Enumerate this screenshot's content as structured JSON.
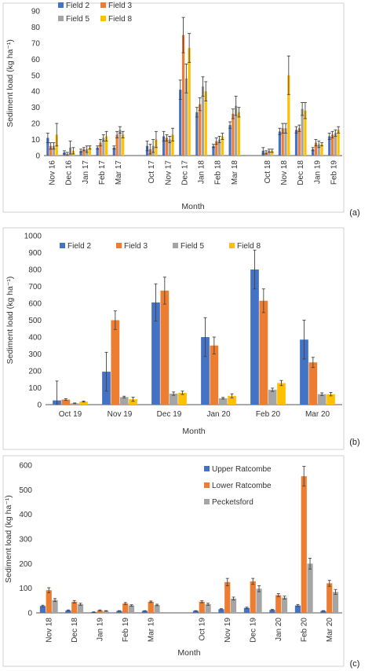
{
  "colors": {
    "blue": "#4472c4",
    "orange": "#ed7d31",
    "gray": "#a5a5a5",
    "yellow": "#ffc000"
  },
  "chart_data": [
    {
      "type": "bar",
      "panel_label": "(a)",
      "xlabel": "Month",
      "ylabel": "Sediment load (kg ha⁻¹)",
      "ylim": [
        0,
        90
      ],
      "yticks": [
        0,
        10,
        20,
        30,
        40,
        50,
        60,
        70,
        80,
        90
      ],
      "legend_position": "top-left",
      "categories": [
        "Nov 16",
        "Dec 16",
        "Jan 17",
        "Feb 17",
        "Mar 17",
        "",
        "Oct 17",
        "Nov 17",
        "Dec 17",
        "Jan 18",
        "Feb 18",
        "Mar 18",
        "",
        "Oct 18",
        "Nov 18",
        "Dec 18",
        "Jan 19",
        "Feb 19"
      ],
      "series": [
        {
          "name": "Field 2",
          "color": "blue",
          "values": [
            11,
            2,
            3,
            5,
            5,
            null,
            6,
            12,
            41,
            27,
            6,
            19,
            null,
            3,
            15,
            16,
            4,
            12
          ],
          "errors": [
            3,
            1,
            1,
            1,
            1,
            null,
            3,
            3,
            6,
            3,
            1,
            2,
            null,
            2,
            2,
            2,
            1,
            2
          ]
        },
        {
          "name": "Field 3",
          "color": "orange",
          "values": [
            6,
            1,
            4,
            8,
            13,
            null,
            4,
            11,
            75,
            32,
            9,
            26,
            null,
            2,
            17,
            17,
            8,
            13
          ],
          "errors": [
            2,
            1,
            1,
            2,
            2,
            null,
            3,
            2,
            11,
            4,
            2,
            3,
            null,
            1,
            3,
            2,
            2,
            2
          ]
        },
        {
          "name": "Field 5",
          "color": "gray",
          "values": [
            6,
            5,
            4,
            11,
            16,
            null,
            6,
            10,
            48,
            43,
            10,
            31,
            null,
            3,
            17,
            29,
            7,
            14
          ],
          "errors": [
            2,
            4,
            2,
            2,
            2,
            null,
            4,
            2,
            9,
            6,
            2,
            6,
            null,
            1,
            3,
            4,
            2,
            2
          ]
        },
        {
          "name": "Field 8",
          "color": "yellow",
          "values": [
            13,
            3,
            5,
            12,
            13,
            null,
            10,
            13,
            67,
            40,
            12,
            27,
            null,
            3,
            50,
            28,
            7,
            16
          ],
          "errors": [
            7,
            2,
            1,
            3,
            2,
            null,
            5,
            4,
            9,
            6,
            2,
            3,
            null,
            1,
            12,
            5,
            1,
            2
          ]
        }
      ]
    },
    {
      "type": "bar",
      "panel_label": "(b)",
      "xlabel": "Month",
      "ylabel": "Sediment load (kg ha⁻¹)",
      "ylim": [
        0,
        1000
      ],
      "yticks": [
        0,
        100,
        200,
        300,
        400,
        500,
        600,
        700,
        800,
        900,
        1000
      ],
      "legend_position": "top",
      "categories": [
        "Oct 19",
        "Nov 19",
        "Dec 19",
        "Jan 20",
        "Feb 20",
        "Mar 20"
      ],
      "series": [
        {
          "name": "Field 2",
          "color": "blue",
          "values": [
            25,
            195,
            605,
            400,
            800,
            385
          ],
          "errors": [
            115,
            115,
            110,
            115,
            115,
            115
          ]
        },
        {
          "name": "Field 3",
          "color": "orange",
          "values": [
            30,
            500,
            675,
            350,
            615,
            250
          ],
          "errors": [
            5,
            55,
            80,
            50,
            70,
            30
          ]
        },
        {
          "name": "Field 5",
          "color": "gray",
          "values": [
            8,
            45,
            65,
            38,
            88,
            62
          ],
          "errors": [
            2,
            5,
            10,
            5,
            10,
            8
          ]
        },
        {
          "name": "Field 8",
          "color": "yellow",
          "values": [
            18,
            32,
            70,
            52,
            128,
            62
          ],
          "errors": [
            3,
            12,
            10,
            12,
            15,
            10
          ]
        }
      ]
    },
    {
      "type": "bar",
      "panel_label": "(c)",
      "xlabel": "Month",
      "ylabel": "Sediment load (kg ha⁻¹)",
      "ylim": [
        0,
        600
      ],
      "yticks": [
        0,
        100,
        200,
        300,
        400,
        500,
        600
      ],
      "legend_position": "top-right",
      "categories": [
        "Nov 18",
        "Dec 18",
        "Jan 19",
        "Feb 19",
        "Mar 19",
        "",
        "Oct 19",
        "Nov 19",
        "Dec 19",
        "Jan 20",
        "Feb 20",
        "Mar 20"
      ],
      "series": [
        {
          "name": "Upper Ratcombe",
          "color": "blue",
          "values": [
            28,
            10,
            3,
            8,
            8,
            null,
            8,
            15,
            20,
            12,
            30,
            8
          ],
          "errors": [
            3,
            2,
            1,
            1,
            1,
            null,
            1,
            2,
            3,
            2,
            4,
            1
          ]
        },
        {
          "name": "Lower Ratcombe",
          "color": "orange",
          "values": [
            92,
            45,
            10,
            38,
            45,
            null,
            45,
            125,
            128,
            72,
            555,
            120
          ],
          "errors": [
            10,
            5,
            2,
            4,
            3,
            null,
            4,
            15,
            12,
            6,
            40,
            12
          ]
        },
        {
          "name": "Pecketsford",
          "color": "gray",
          "values": [
            52,
            35,
            8,
            30,
            32,
            null,
            35,
            58,
            98,
            62,
            200,
            85
          ],
          "errors": [
            6,
            4,
            1,
            3,
            3,
            null,
            4,
            6,
            12,
            6,
            22,
            10
          ]
        }
      ]
    }
  ]
}
